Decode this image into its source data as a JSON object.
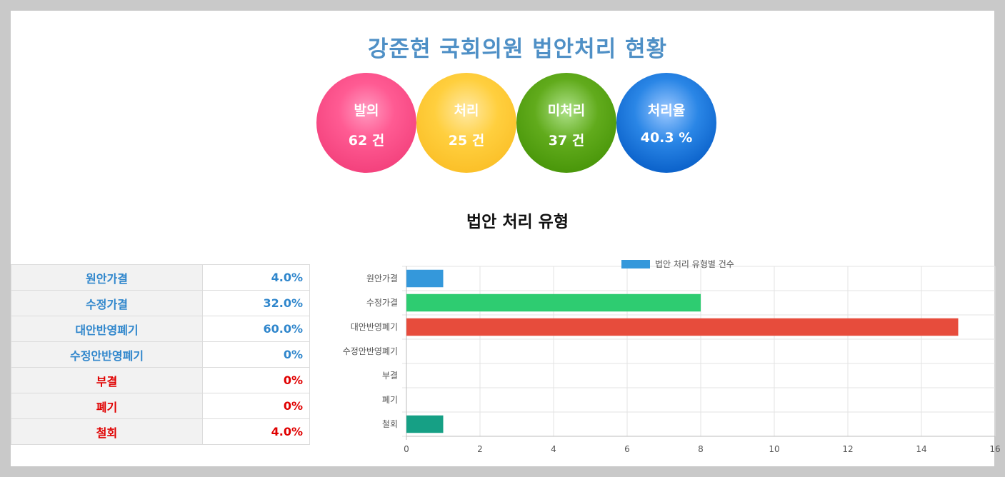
{
  "title": "강준현 국회의원 법안처리 현황",
  "summary": [
    {
      "label": "발의",
      "value": "62 건"
    },
    {
      "label": "처리",
      "value": "25 건"
    },
    {
      "label": "미처리",
      "value": "37 건"
    },
    {
      "label": "처리율",
      "value": "40.3 %"
    }
  ],
  "colors": {
    "title": "#4f90c6",
    "circles": [
      "#f4437e",
      "#fbc12a",
      "#4b980b",
      "#0d64cc"
    ],
    "table_blue": "#2f86cc",
    "table_red": "#e00000"
  },
  "section_title": "법안 처리 유형",
  "table": {
    "rows": [
      {
        "label": "원안가결",
        "value": "4.0%",
        "color": "blue"
      },
      {
        "label": "수정가결",
        "value": "32.0%",
        "color": "blue"
      },
      {
        "label": "대안반영폐기",
        "value": "60.0%",
        "color": "blue"
      },
      {
        "label": "수정안반영폐기",
        "value": "0%",
        "color": "blue"
      },
      {
        "label": "부결",
        "value": "0%",
        "color": "red"
      },
      {
        "label": "폐기",
        "value": "0%",
        "color": "red"
      },
      {
        "label": "철회",
        "value": "4.0%",
        "color": "red"
      }
    ]
  },
  "chart_data": {
    "type": "bar",
    "orientation": "horizontal",
    "categories": [
      "원안가결",
      "수정가결",
      "대안반영폐기",
      "수정안반영폐기",
      "부결",
      "폐기",
      "철회"
    ],
    "series": [
      {
        "name": "법안 처리 유형별 건수",
        "values": [
          1,
          8,
          15,
          0,
          0,
          0,
          1
        ]
      }
    ],
    "bar_colors": [
      "#3498db",
      "#2ecc71",
      "#e74c3c",
      "#9b59b6",
      "#f1c40f",
      "#e67e22",
      "#16a085"
    ],
    "legend_color": "#3498db",
    "xlim": [
      0,
      16
    ],
    "xticks": [
      0,
      2,
      4,
      6,
      8,
      10,
      12,
      14,
      16
    ],
    "grid": true,
    "legend_position": "top"
  }
}
